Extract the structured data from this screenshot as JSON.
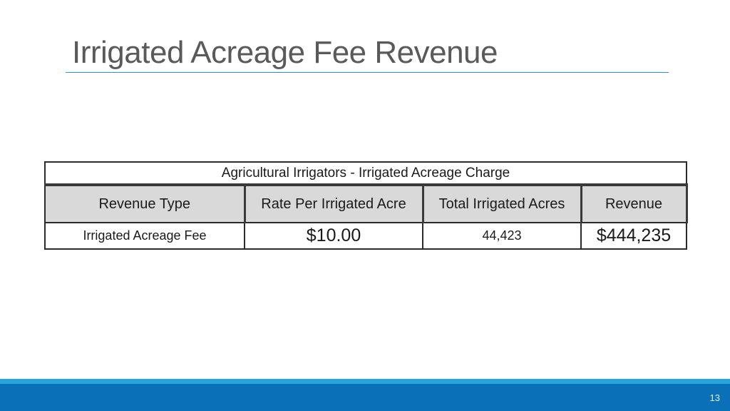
{
  "slide": {
    "title": "Irrigated Acreage Fee Revenue",
    "page_number": "13"
  },
  "table": {
    "caption": "Agricultural Irrigators - Irrigated Acreage Charge",
    "headers": [
      "Revenue Type",
      "Rate Per Irrigated Acre",
      "Total Irrigated Acres",
      "Revenue"
    ],
    "rows": [
      [
        "Irrigated Acreage Fee",
        "$10.00",
        "44,423",
        "$444,235"
      ]
    ]
  },
  "colors": {
    "title_text": "#5a5a5a",
    "title_rule": "#2f93d1",
    "header_fill": "#d9d9d9",
    "footer_light": "#29a3e0",
    "footer_dark": "#0a70b8"
  }
}
